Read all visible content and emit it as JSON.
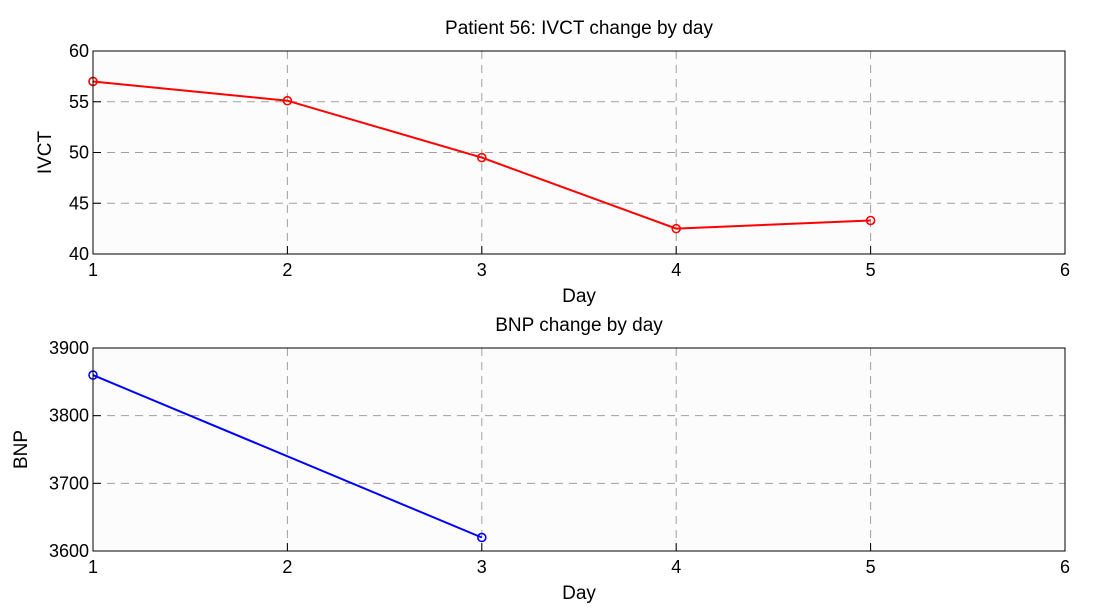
{
  "chart_data": [
    {
      "type": "line",
      "title": "Patient 56: IVCT change by day",
      "xlabel": "Day",
      "ylabel": "IVCT",
      "xlim": [
        1,
        6
      ],
      "ylim": [
        40,
        60
      ],
      "xticks": [
        1,
        2,
        3,
        4,
        5,
        6
      ],
      "yticks": [
        40,
        45,
        50,
        55,
        60
      ],
      "grid": true,
      "marker": "circle",
      "series": [
        {
          "x": [
            1,
            2,
            3,
            4,
            5
          ],
          "values": [
            57,
            55.1,
            49.5,
            42.5,
            43.3
          ],
          "color": "#ff0000"
        }
      ]
    },
    {
      "type": "line",
      "title": "BNP change by day",
      "xlabel": "Day",
      "ylabel": "BNP",
      "xlim": [
        1,
        6
      ],
      "ylim": [
        3600,
        3900
      ],
      "xticks": [
        1,
        2,
        3,
        4,
        5,
        6
      ],
      "yticks": [
        3600,
        3700,
        3800,
        3900
      ],
      "grid": true,
      "marker": "circle",
      "series": [
        {
          "x": [
            1,
            3
          ],
          "values": [
            3860,
            3620
          ],
          "color": "#0000ff"
        }
      ]
    }
  ]
}
